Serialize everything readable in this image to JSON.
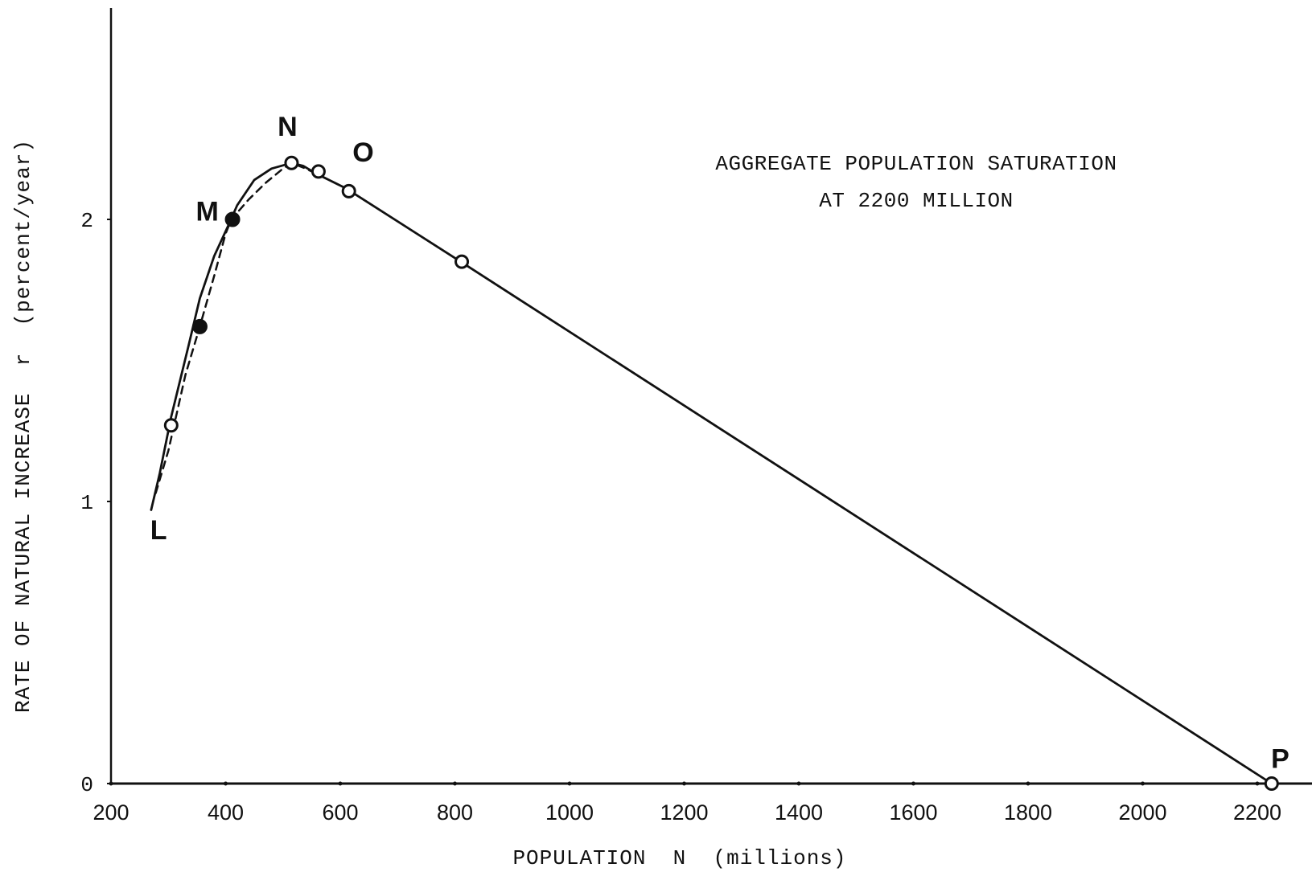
{
  "chart_data": {
    "type": "line",
    "title": "",
    "xlabel": "POPULATION  N  (millions)",
    "ylabel": "RATE OF NATURAL INCREASE  r  (percent/year)",
    "xlim": [
      200,
      2260
    ],
    "ylim": [
      0,
      2.7
    ],
    "xticks": [
      200,
      400,
      600,
      800,
      1000,
      1200,
      1400,
      1600,
      1800,
      2000,
      2200
    ],
    "xtick_labels": [
      "200",
      "400",
      "600",
      "800",
      "1000",
      "1200",
      "1400",
      "1600",
      "1800",
      "2000",
      "2200"
    ],
    "yticks": [
      0,
      1,
      2
    ],
    "ytick_labels": [
      "0",
      "1",
      "2"
    ],
    "annotation": [
      "AGGREGATE POPULATION SATURATION",
      "AT 2200 MILLION"
    ],
    "series": [
      {
        "style": "solid",
        "x": [
          270,
          285,
          305,
          335,
          355,
          380,
          405,
          420,
          450,
          480,
          515,
          535,
          560,
          610,
          810,
          2225
        ],
        "y": [
          0.97,
          1.1,
          1.3,
          1.55,
          1.72,
          1.87,
          1.98,
          2.05,
          2.14,
          2.18,
          2.2,
          2.19,
          2.16,
          2.11,
          1.85,
          0.0
        ]
      },
      {
        "style": "dashed",
        "x": [
          278,
          300,
          330,
          355,
          380,
          400,
          410,
          440,
          470,
          500,
          515,
          540,
          560,
          590,
          610
        ],
        "y": [
          1.03,
          1.18,
          1.45,
          1.62,
          1.8,
          1.95,
          2.0,
          2.07,
          2.13,
          2.18,
          2.2,
          2.18,
          2.16,
          2.13,
          2.11
        ]
      }
    ],
    "markers": [
      {
        "x": 305,
        "y": 1.27,
        "fill": "open"
      },
      {
        "x": 355,
        "y": 1.62,
        "fill": "filled"
      },
      {
        "x": 412,
        "y": 2.0,
        "fill": "filled"
      },
      {
        "x": 515,
        "y": 2.2,
        "fill": "open"
      },
      {
        "x": 562,
        "y": 2.17,
        "fill": "open"
      },
      {
        "x": 615,
        "y": 2.1,
        "fill": "open"
      },
      {
        "x": 812,
        "y": 1.85,
        "fill": "open"
      },
      {
        "x": 2225,
        "y": 0.0,
        "fill": "open"
      }
    ],
    "point_labels": [
      {
        "text": "L",
        "x": 283,
        "y": 0.9
      },
      {
        "text": "M",
        "x": 368,
        "y": 2.03
      },
      {
        "text": "N",
        "x": 508,
        "y": 2.33
      },
      {
        "text": "O",
        "x": 640,
        "y": 2.24
      },
      {
        "text": "P",
        "x": 2240,
        "y": 0.09
      }
    ],
    "grid": false,
    "legend": "none"
  }
}
